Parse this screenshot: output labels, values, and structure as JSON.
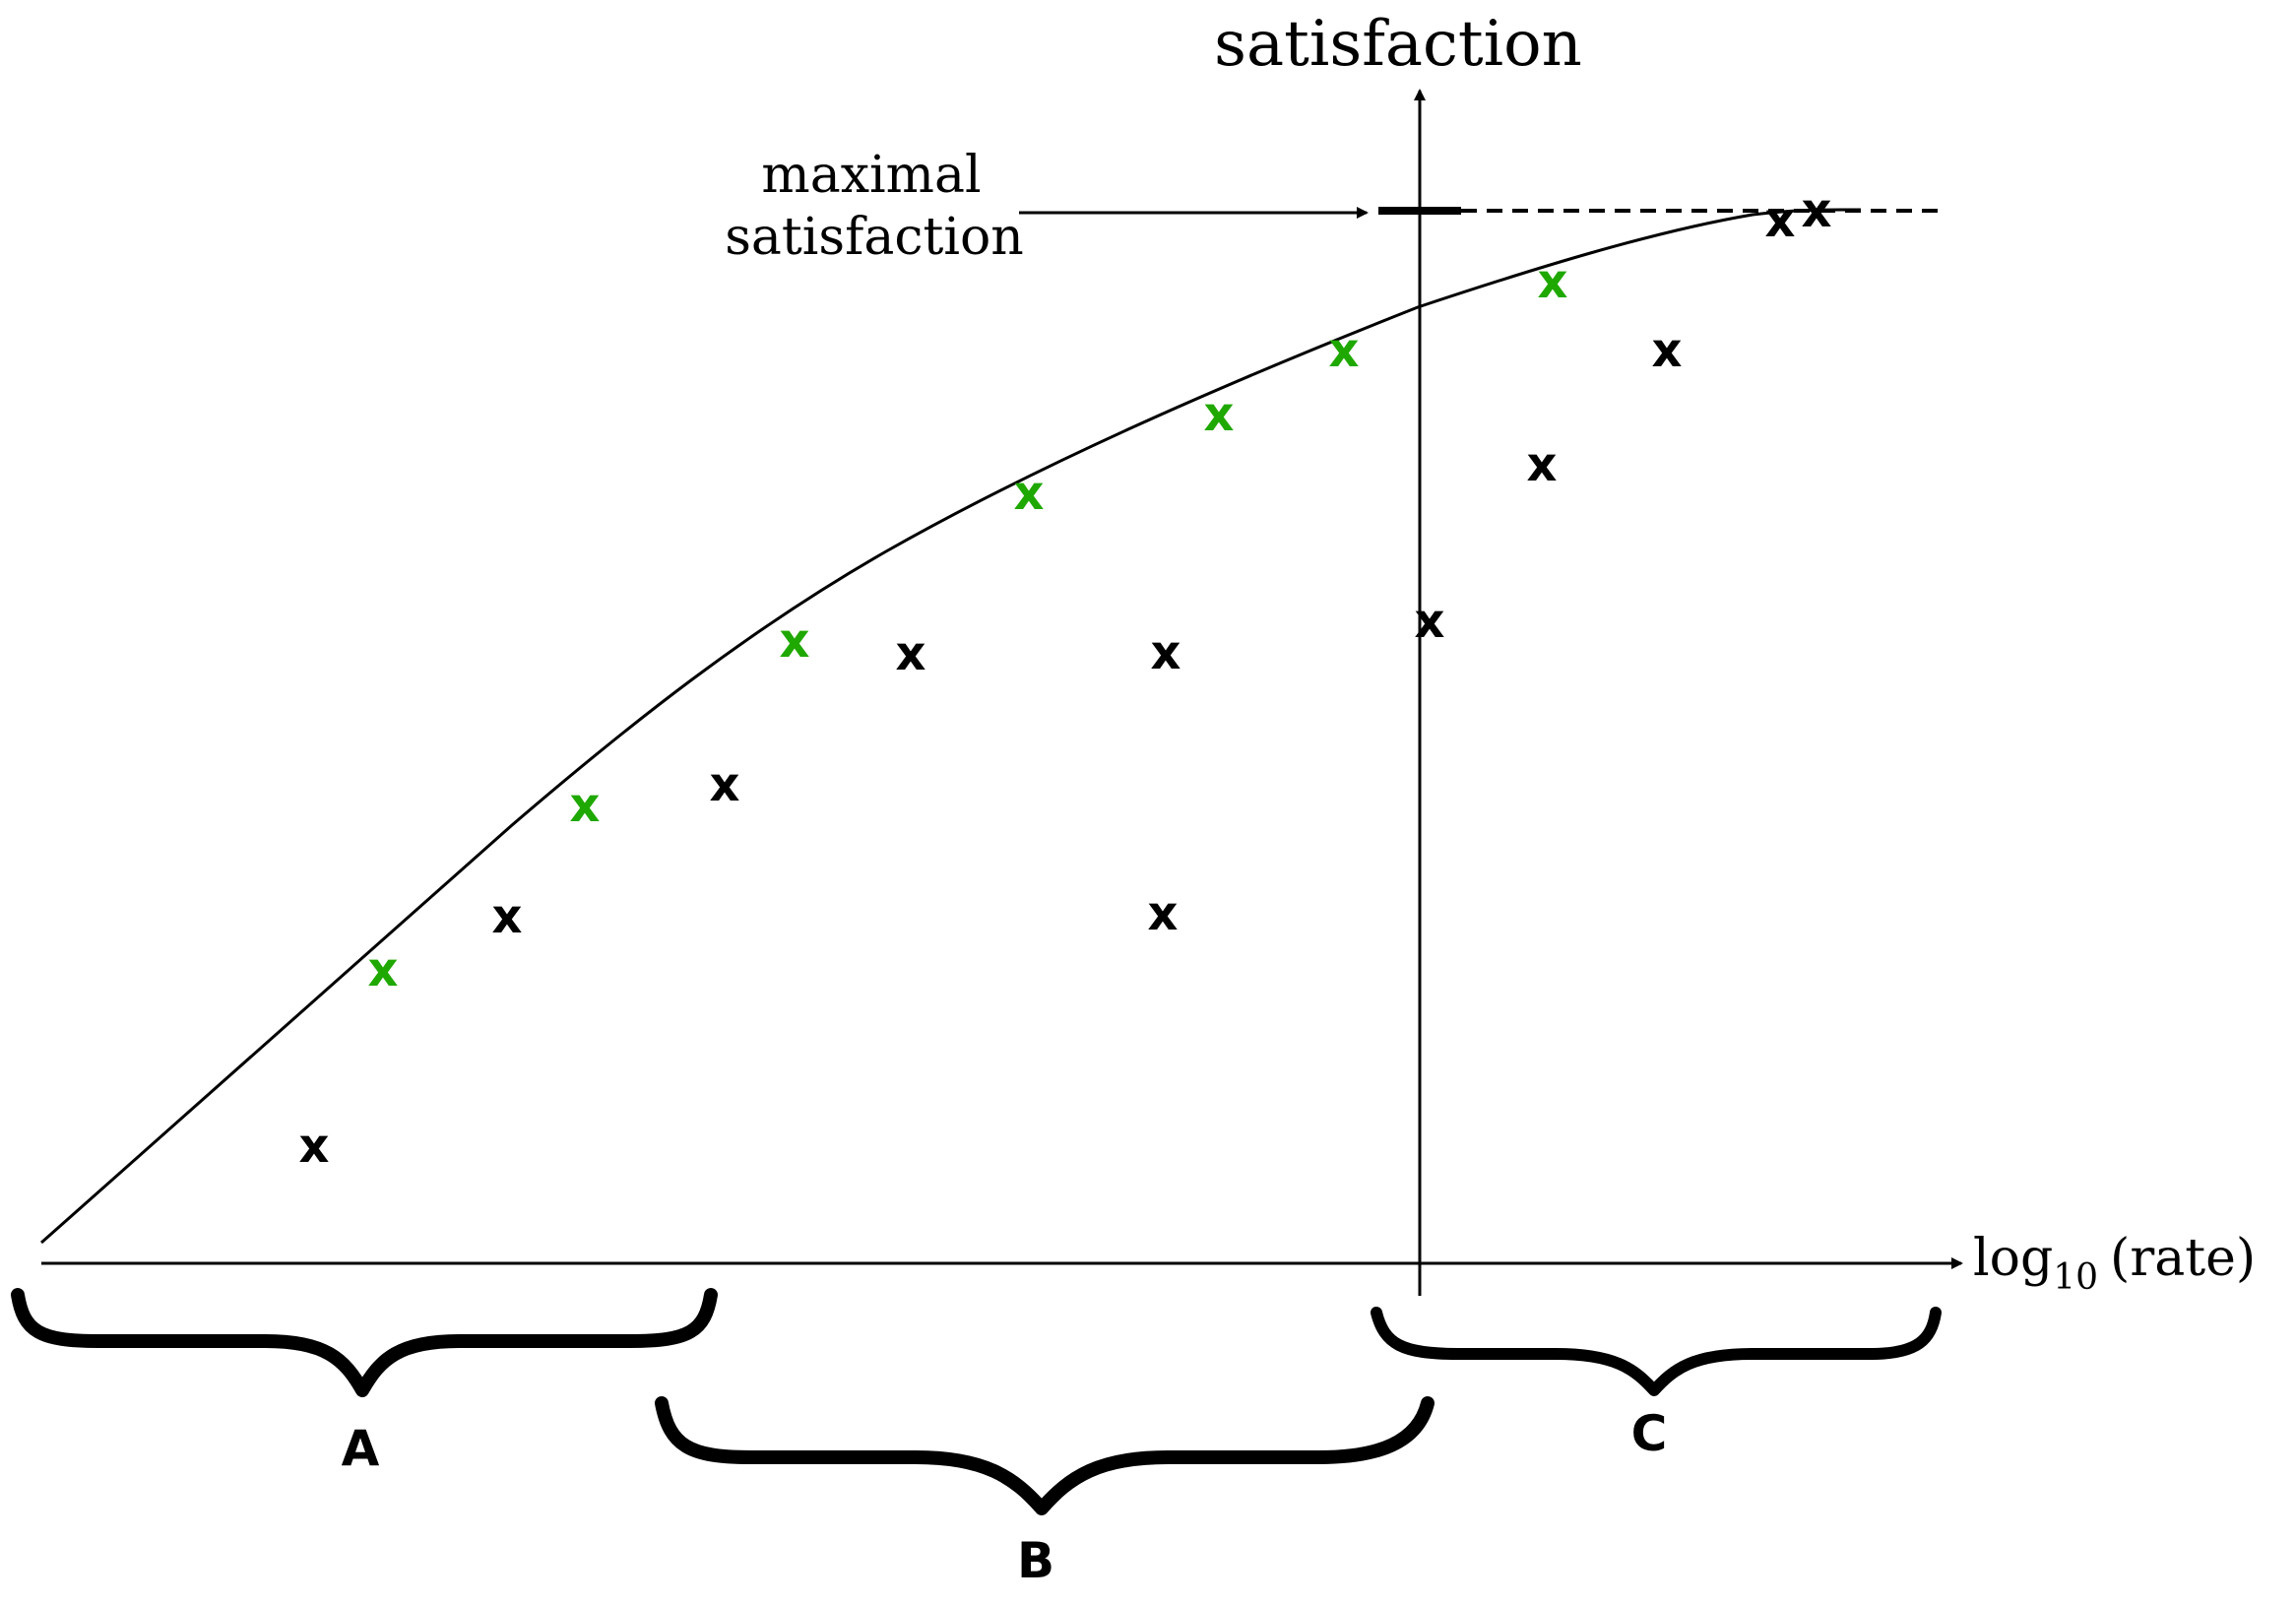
{
  "axes": {
    "y_label": "satisfaction",
    "x_label_prefix": "log",
    "x_label_subscript": "10",
    "x_label_suffix": "(rate)"
  },
  "annotation": {
    "line1": "maximal",
    "line2": "satisfaction"
  },
  "regions": {
    "a": "A",
    "b": "B",
    "c": "C"
  },
  "marker_glyph": "x",
  "colors": {
    "ink": "#000000",
    "highlight": "#1fa800"
  }
}
